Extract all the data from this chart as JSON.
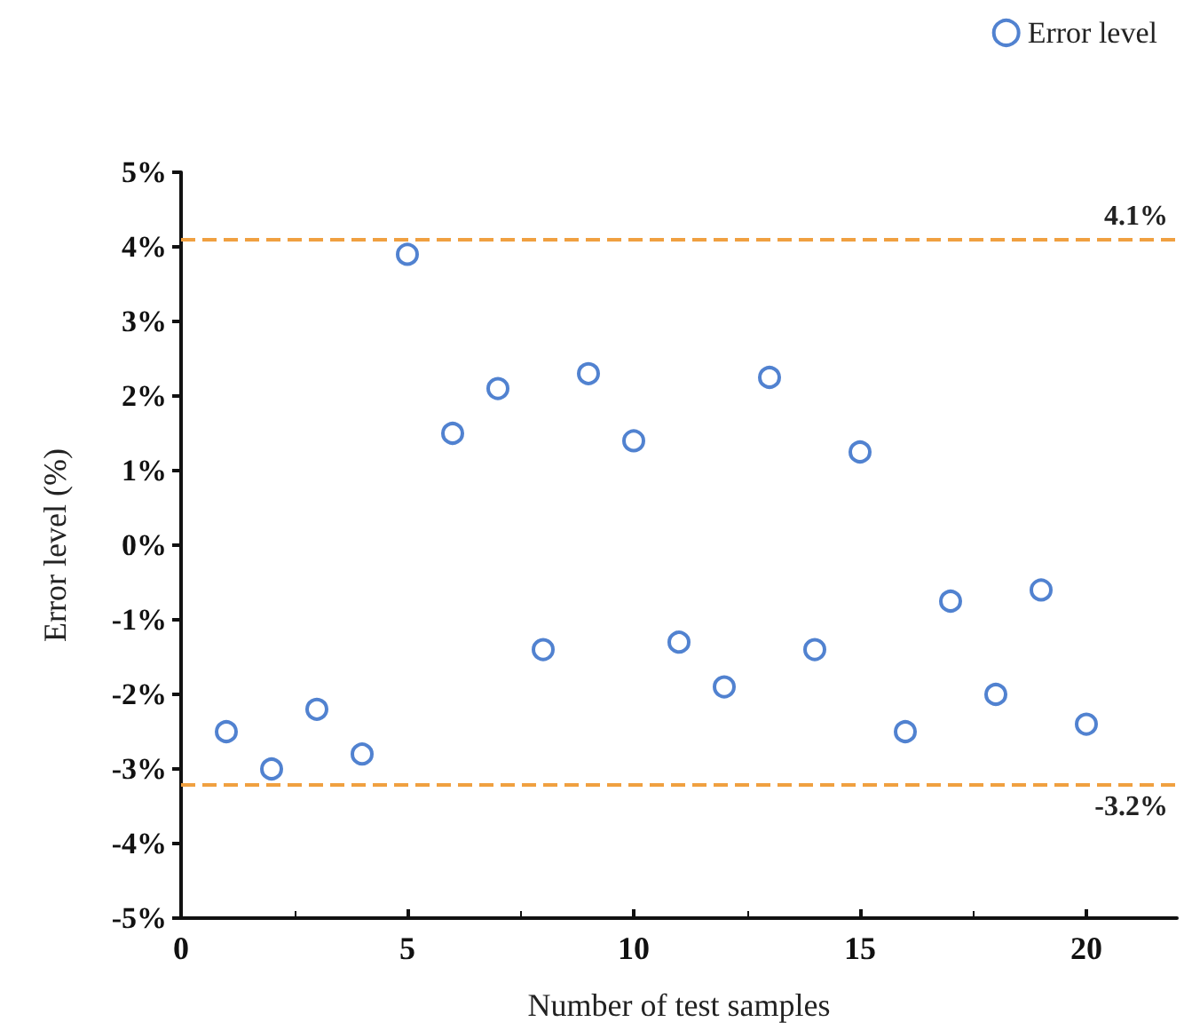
{
  "chart_data": {
    "type": "scatter",
    "xlabel": "Number of test samples",
    "ylabel": "Error level (%)",
    "x": [
      1,
      2,
      3,
      4,
      5,
      6,
      7,
      8,
      9,
      10,
      11,
      12,
      13,
      14,
      15,
      16,
      17,
      18,
      19,
      20
    ],
    "series": [
      {
        "name": "Error level",
        "color": "#2563c4",
        "values": [
          -2.5,
          -3.0,
          -2.2,
          -2.8,
          3.9,
          1.5,
          2.1,
          -1.4,
          2.3,
          1.4,
          -1.3,
          -1.9,
          2.25,
          -1.4,
          1.25,
          -2.5,
          -0.75,
          -2.0,
          -0.6,
          -2.4
        ]
      }
    ],
    "xlim": [
      0,
      22
    ],
    "xticks": [
      0,
      5,
      10,
      15,
      20
    ],
    "ylim": [
      -5,
      5
    ],
    "yticks": [
      {
        "value": -5,
        "label": "-5%"
      },
      {
        "value": -4,
        "label": "-4%"
      },
      {
        "value": -3,
        "label": "-3%"
      },
      {
        "value": -2,
        "label": "-2%"
      },
      {
        "value": -1,
        "label": "-1%"
      },
      {
        "value": 0,
        "label": "0%"
      },
      {
        "value": 1,
        "label": "1%"
      },
      {
        "value": 2,
        "label": "2%"
      },
      {
        "value": 3,
        "label": "3%"
      },
      {
        "value": 4,
        "label": "4%"
      },
      {
        "value": 5,
        "label": "5%"
      }
    ],
    "ref_lines": [
      {
        "axis": "y",
        "value": 4.1,
        "label": "4.1%",
        "color": "#f0a040",
        "line_style": "dashed"
      },
      {
        "axis": "y",
        "value": -3.2,
        "label": "-3.2%",
        "color": "#f0a040",
        "line_style": "dashed"
      }
    ],
    "grid": false,
    "legend": "top right",
    "marker": "circle"
  }
}
